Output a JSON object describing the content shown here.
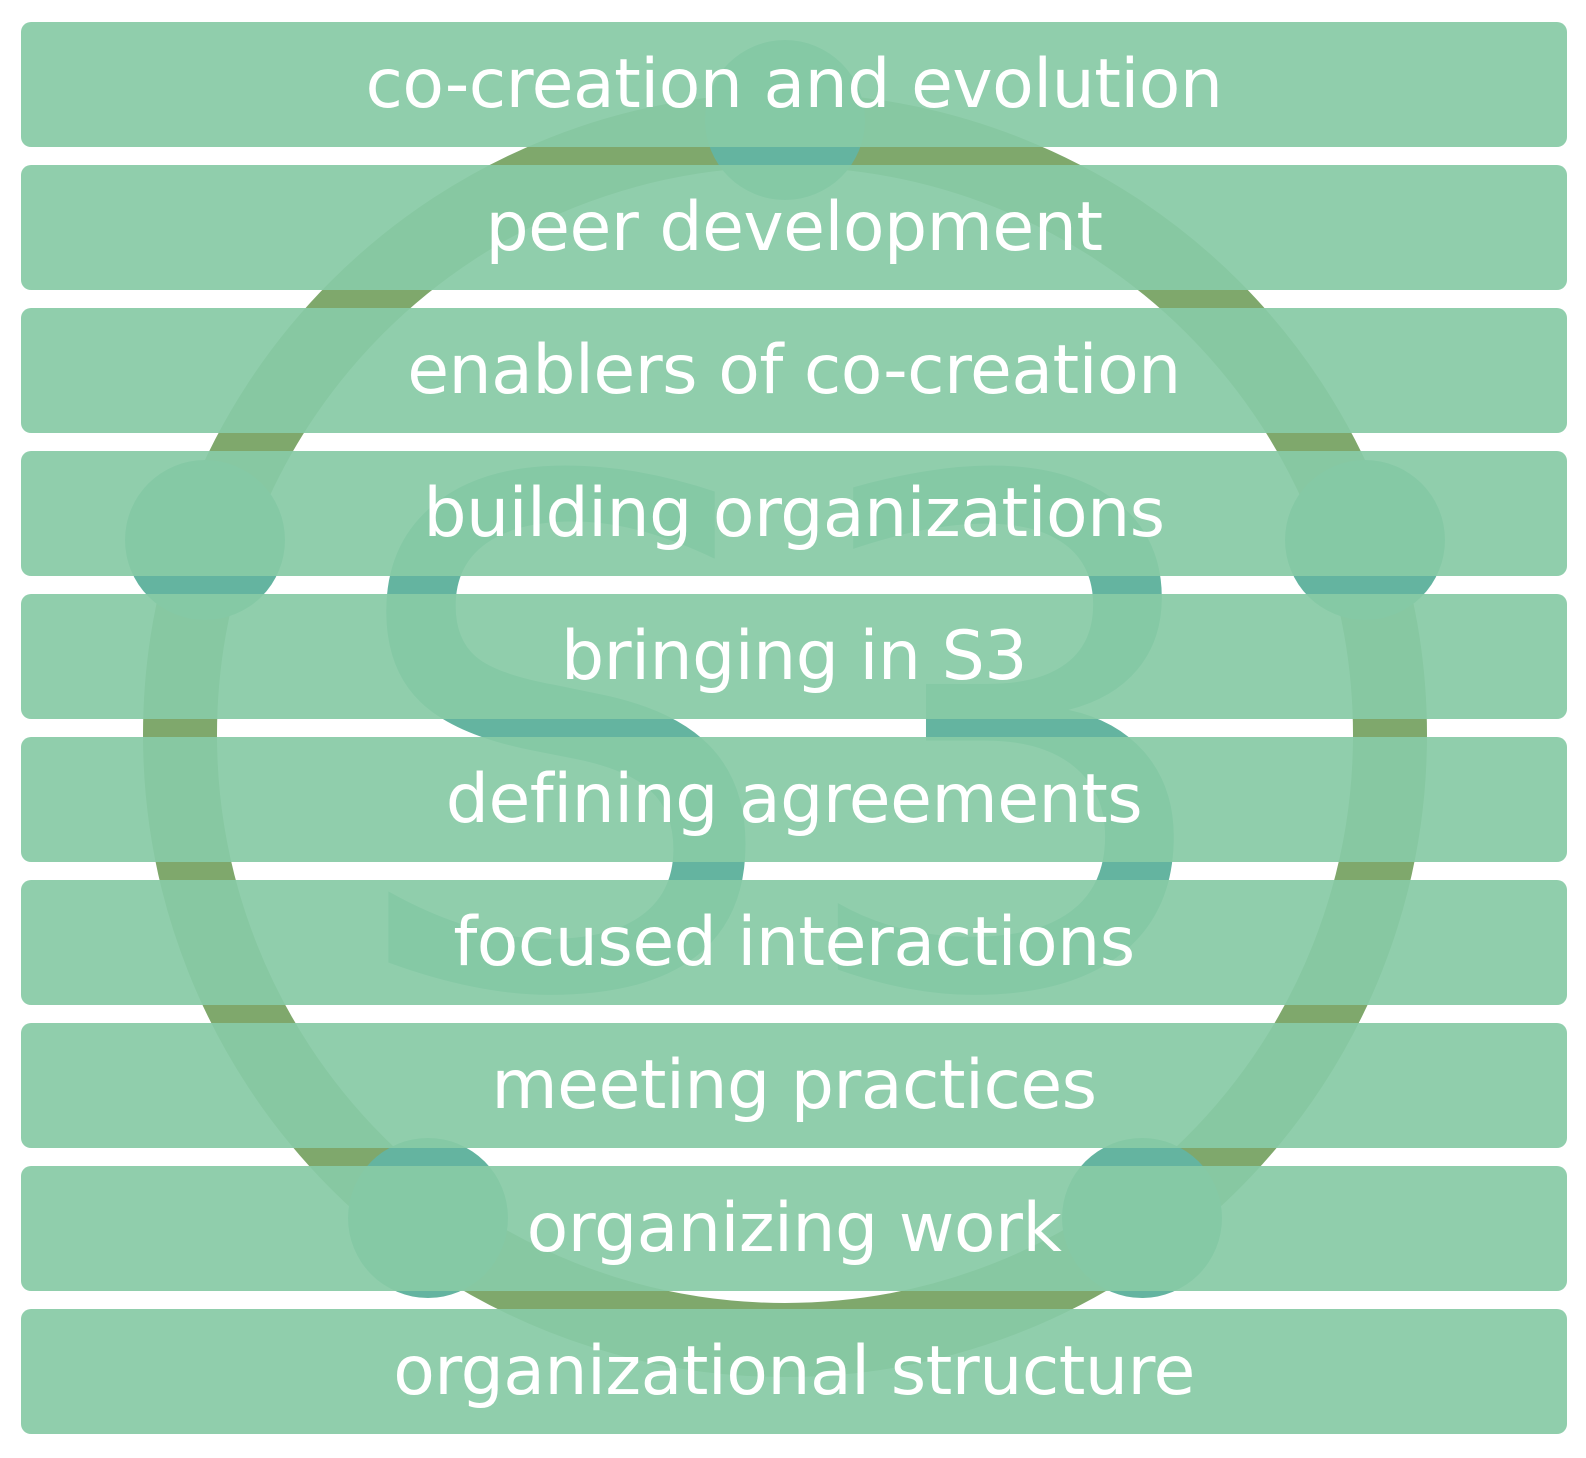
{
  "colors": {
    "bar_fill": "#86c8a4",
    "label_text": "#ffffff",
    "ring": "#7fa86c",
    "node": "#64b4a0",
    "letterform": "#64b4a0"
  },
  "background_logo": {
    "icon": "s3-ring-logo-icon",
    "letterform": "S3"
  },
  "bars": [
    {
      "label": "co-creation and evolution"
    },
    {
      "label": "peer development"
    },
    {
      "label": "enablers of co-creation"
    },
    {
      "label": "building organizations"
    },
    {
      "label": "bringing in S3"
    },
    {
      "label": "defining agreements"
    },
    {
      "label": "focused interactions"
    },
    {
      "label": "meeting practices"
    },
    {
      "label": "organizing work"
    },
    {
      "label": "organizational structure"
    }
  ]
}
